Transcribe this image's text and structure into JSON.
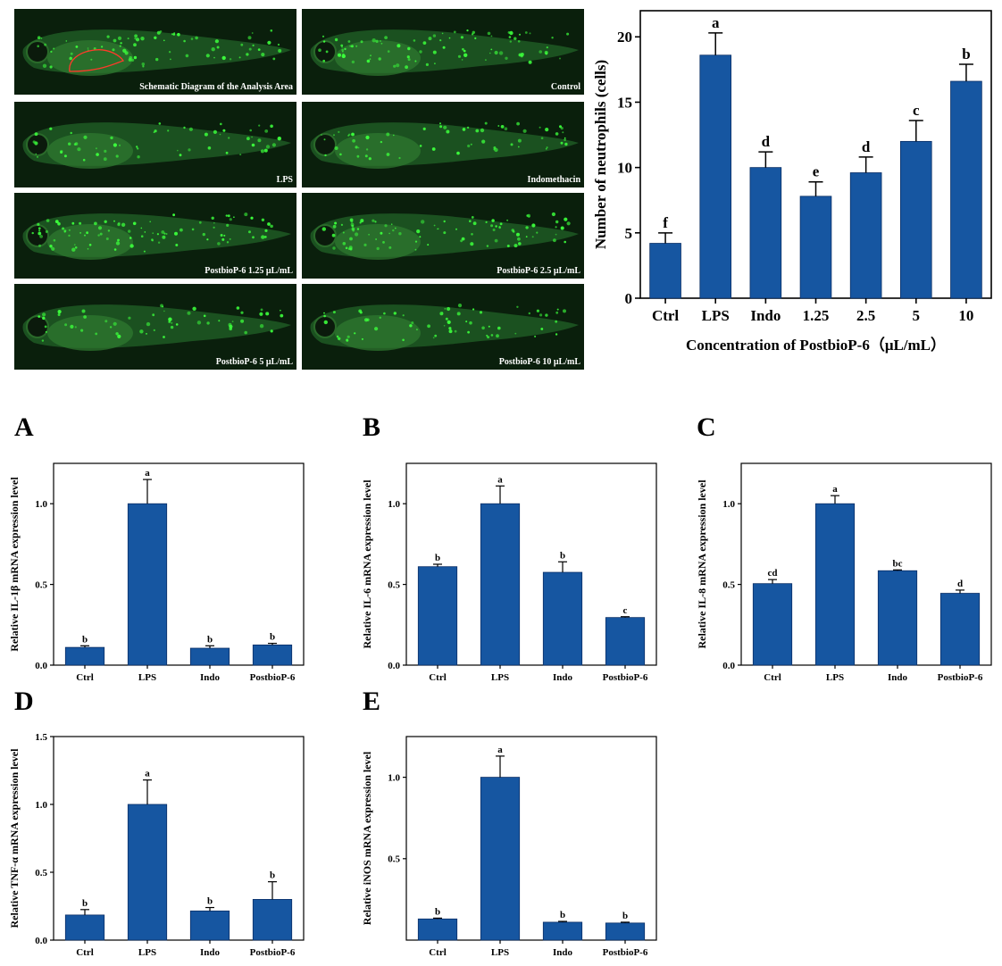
{
  "colors": {
    "bar": "#1656A1",
    "background": "#ffffff",
    "fish": "#0f3a12",
    "spot": "#3cff3c"
  },
  "micrographs": [
    {
      "label": "Schematic Diagram of the Analysis Area",
      "outline": true
    },
    {
      "label": "Control"
    },
    {
      "label": "LPS"
    },
    {
      "label": "Indomethacin"
    },
    {
      "label": "PostbioP-6  1.25 μL/mL"
    },
    {
      "label": "PostbioP-6  2.5 μL/mL"
    },
    {
      "label": "PostbioP-6  5 μL/mL"
    },
    {
      "label": "PostbioP-6  10 μL/mL"
    }
  ],
  "chart_data": [
    {
      "id": "neutrophils",
      "type": "bar",
      "title": "",
      "xlabel": "Concentration of PostbioP-6（μL/mL）",
      "ylabel": "Number of neutrophils (cells)",
      "categories": [
        "Ctrl",
        "LPS",
        "Indo",
        "1.25",
        "2.5",
        "5",
        "10"
      ],
      "values": [
        4.2,
        18.6,
        10.0,
        7.8,
        9.6,
        12.0,
        16.6
      ],
      "errors": [
        0.8,
        1.7,
        1.2,
        1.1,
        1.2,
        1.6,
        1.3
      ],
      "annotations": [
        "f",
        "a",
        "d",
        "e",
        "d",
        "c",
        "b"
      ],
      "ylim": [
        0,
        22
      ],
      "yticks": [
        0,
        5,
        10,
        15,
        20
      ]
    },
    {
      "id": "A",
      "panel_letter": "A",
      "type": "bar",
      "ylabel": "Relative IL-1β mRNA expression level",
      "categories": [
        "Ctrl",
        "LPS",
        "Indo",
        "PostbioP-6"
      ],
      "values": [
        0.11,
        1.0,
        0.105,
        0.125
      ],
      "errors": [
        0.01,
        0.15,
        0.015,
        0.01
      ],
      "annotations": [
        "b",
        "a",
        "b",
        "b"
      ],
      "ylim": [
        0,
        1.25
      ],
      "yticks": [
        "0.0",
        "0.5",
        "1.0"
      ]
    },
    {
      "id": "B",
      "panel_letter": "B",
      "type": "bar",
      "ylabel": "Relative IL-6 mRNA expression level",
      "categories": [
        "Ctrl",
        "LPS",
        "Indo",
        "PostbioP-6"
      ],
      "values": [
        0.61,
        1.0,
        0.575,
        0.295
      ],
      "errors": [
        0.015,
        0.11,
        0.065,
        0.005
      ],
      "annotations": [
        "b",
        "a",
        "b",
        "c"
      ],
      "ylim": [
        0,
        1.25
      ],
      "yticks": [
        "0.0",
        "0.5",
        "1.0"
      ]
    },
    {
      "id": "C",
      "panel_letter": "C",
      "type": "bar",
      "ylabel": "Relative IL-8 mRNA expression level",
      "categories": [
        "Ctrl",
        "LPS",
        "Indo",
        "PostbioP-6"
      ],
      "values": [
        0.505,
        1.0,
        0.585,
        0.445
      ],
      "errors": [
        0.025,
        0.05,
        0.005,
        0.02
      ],
      "annotations": [
        "cd",
        "a",
        "bc",
        "d"
      ],
      "ylim": [
        0,
        1.25
      ],
      "yticks": [
        "0.0",
        "0.5",
        "1.0"
      ]
    },
    {
      "id": "D",
      "panel_letter": "D",
      "type": "bar",
      "ylabel": "Relative TNF-α mRNA expression level",
      "categories": [
        "Ctrl",
        "LPS",
        "Indo",
        "PostbioP-6"
      ],
      "values": [
        0.185,
        1.0,
        0.215,
        0.3
      ],
      "errors": [
        0.04,
        0.18,
        0.025,
        0.13
      ],
      "annotations": [
        "b",
        "a",
        "b",
        "b"
      ],
      "ylim": [
        0,
        1.5
      ],
      "yticks": [
        "0.0",
        "0.5",
        "1.0",
        "1.5"
      ]
    },
    {
      "id": "E",
      "panel_letter": "E",
      "type": "bar",
      "ylabel": "Relative iNOS mRNA expression level",
      "categories": [
        "Ctrl",
        "LPS",
        "Indo",
        "PostbioP-6"
      ],
      "values": [
        0.13,
        1.0,
        0.11,
        0.105
      ],
      "errors": [
        0.005,
        0.13,
        0.005,
        0.005
      ],
      "annotations": [
        "b",
        "a",
        "b",
        "b"
      ],
      "ylim": [
        0,
        1.25
      ],
      "yticks": [
        "0.5",
        "1.0"
      ]
    }
  ]
}
